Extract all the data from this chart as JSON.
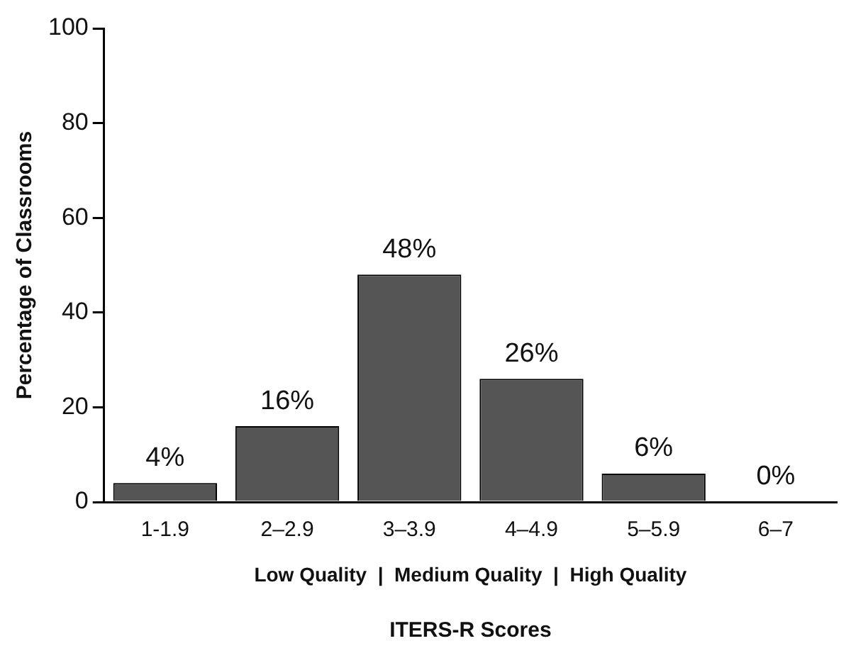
{
  "chart_data": {
    "type": "bar",
    "xlabel": "ITERS-R Scores",
    "ylabel": "Percentage of Classrooms",
    "categories": [
      "1-1.9",
      "2–2.9",
      "3–3.9",
      "4–4.9",
      "5–5.9",
      "6–7"
    ],
    "values": [
      4,
      16,
      48,
      26,
      6,
      0
    ],
    "value_labels": [
      "4%",
      "16%",
      "48%",
      "26%",
      "6%",
      "0%"
    ],
    "color": "#555555",
    "ylim": [
      0,
      100
    ],
    "yticks": [
      0,
      20,
      40,
      60,
      80,
      100
    ],
    "grid": false,
    "annotations": [
      "Low Quality  |  Medium Quality  |  High Quality"
    ]
  }
}
